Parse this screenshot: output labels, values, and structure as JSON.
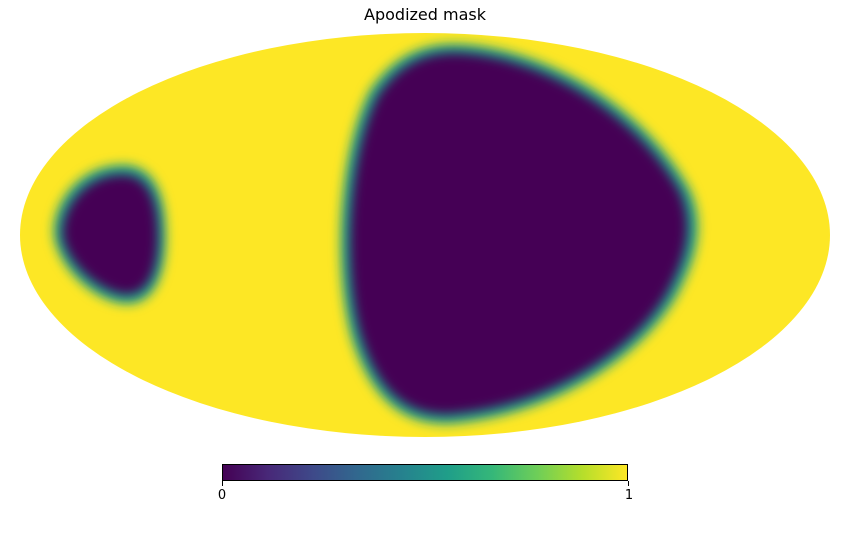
{
  "title": "Apodized mask",
  "colormap": {
    "name": "viridis",
    "stops": [
      "#440154",
      "#482878",
      "#3e4989",
      "#31688e",
      "#26828e",
      "#1f9e89",
      "#35b779",
      "#6ece58",
      "#b5de2b",
      "#fde725"
    ],
    "low_color": "#440154",
    "high_color": "#fde725"
  },
  "colorbar": {
    "min_label": "0",
    "max_label": "1",
    "range": [
      0,
      1
    ]
  },
  "map": {
    "projection": "mollweide",
    "background_value": 1,
    "masked_value": 0
  }
}
